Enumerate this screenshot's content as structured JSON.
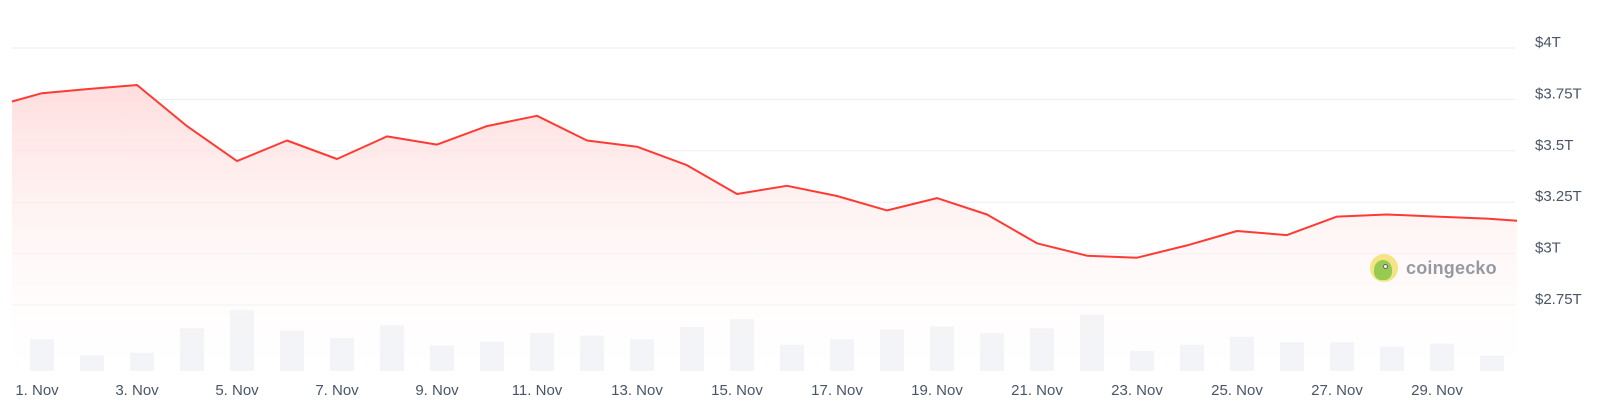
{
  "chart_data": {
    "type": "area",
    "watermark_text": "coingecko",
    "colors": {
      "line": "#ff3a33",
      "area_top": "#ffdcdc",
      "volume": "#eff1f5",
      "grid": "#eceef1",
      "label": "#4a5567"
    },
    "y_axis": {
      "position": "right",
      "min": 2.75,
      "max": 4.0,
      "ticks": [
        {
          "value": 4.0,
          "label": "$4T"
        },
        {
          "value": 3.75,
          "label": "$3.75T"
        },
        {
          "value": 3.5,
          "label": "$3.5T"
        },
        {
          "value": 3.25,
          "label": "$3.25T"
        },
        {
          "value": 3.0,
          "label": "$3T"
        },
        {
          "value": 2.75,
          "label": "$2.75T"
        }
      ]
    },
    "x_axis": {
      "ticks": [
        {
          "day": 1,
          "label": "1. Nov"
        },
        {
          "day": 3,
          "label": "3. Nov"
        },
        {
          "day": 5,
          "label": "5. Nov"
        },
        {
          "day": 7,
          "label": "7. Nov"
        },
        {
          "day": 9,
          "label": "9. Nov"
        },
        {
          "day": 11,
          "label": "11. Nov"
        },
        {
          "day": 13,
          "label": "13. Nov"
        },
        {
          "day": 15,
          "label": "15. Nov"
        },
        {
          "day": 17,
          "label": "17. Nov"
        },
        {
          "day": 19,
          "label": "19. Nov"
        },
        {
          "day": 21,
          "label": "21. Nov"
        },
        {
          "day": 23,
          "label": "23. Nov"
        },
        {
          "day": 25,
          "label": "25. Nov"
        },
        {
          "day": 27,
          "label": "27. Nov"
        },
        {
          "day": 29,
          "label": "29. Nov"
        }
      ]
    },
    "series": [
      {
        "values": [
          {
            "day": 0.5,
            "value": 3.74
          },
          {
            "day": 1.1,
            "value": 3.78
          },
          {
            "day": 2.0,
            "value": 3.8
          },
          {
            "day": 3.0,
            "value": 3.82
          },
          {
            "day": 4.0,
            "value": 3.62
          },
          {
            "day": 5.0,
            "value": 3.45
          },
          {
            "day": 6.0,
            "value": 3.55
          },
          {
            "day": 7.0,
            "value": 3.46
          },
          {
            "day": 8.0,
            "value": 3.57
          },
          {
            "day": 9.0,
            "value": 3.53
          },
          {
            "day": 10.0,
            "value": 3.62
          },
          {
            "day": 11.0,
            "value": 3.67
          },
          {
            "day": 12.0,
            "value": 3.55
          },
          {
            "day": 13.0,
            "value": 3.52
          },
          {
            "day": 14.0,
            "value": 3.43
          },
          {
            "day": 15.0,
            "value": 3.29
          },
          {
            "day": 16.0,
            "value": 3.33
          },
          {
            "day": 17.0,
            "value": 3.28
          },
          {
            "day": 18.0,
            "value": 3.21
          },
          {
            "day": 19.0,
            "value": 3.27
          },
          {
            "day": 20.0,
            "value": 3.19
          },
          {
            "day": 21.0,
            "value": 3.05
          },
          {
            "day": 22.0,
            "value": 2.99
          },
          {
            "day": 23.0,
            "value": 2.98
          },
          {
            "day": 24.0,
            "value": 3.04
          },
          {
            "day": 25.0,
            "value": 3.11
          },
          {
            "day": 26.0,
            "value": 3.09
          },
          {
            "day": 27.0,
            "value": 3.18
          },
          {
            "day": 28.0,
            "value": 3.19
          },
          {
            "day": 29.0,
            "value": 3.18
          },
          {
            "day": 30.0,
            "value": 3.17
          },
          {
            "day": 30.6,
            "value": 3.16
          }
        ]
      }
    ],
    "volume": [
      {
        "day": 1.1,
        "value": 0.52
      },
      {
        "day": 2.1,
        "value": 0.26
      },
      {
        "day": 3.1,
        "value": 0.3
      },
      {
        "day": 4.1,
        "value": 0.7
      },
      {
        "day": 5.1,
        "value": 1.0
      },
      {
        "day": 6.1,
        "value": 0.66
      },
      {
        "day": 7.1,
        "value": 0.54
      },
      {
        "day": 8.1,
        "value": 0.75
      },
      {
        "day": 9.1,
        "value": 0.42
      },
      {
        "day": 10.1,
        "value": 0.48
      },
      {
        "day": 11.1,
        "value": 0.62
      },
      {
        "day": 12.1,
        "value": 0.58
      },
      {
        "day": 13.1,
        "value": 0.52
      },
      {
        "day": 14.1,
        "value": 0.72
      },
      {
        "day": 15.1,
        "value": 0.85
      },
      {
        "day": 16.1,
        "value": 0.43
      },
      {
        "day": 17.1,
        "value": 0.52
      },
      {
        "day": 18.1,
        "value": 0.68
      },
      {
        "day": 19.1,
        "value": 0.73
      },
      {
        "day": 20.1,
        "value": 0.62
      },
      {
        "day": 21.1,
        "value": 0.7
      },
      {
        "day": 22.1,
        "value": 0.92
      },
      {
        "day": 23.1,
        "value": 0.33
      },
      {
        "day": 24.1,
        "value": 0.43
      },
      {
        "day": 25.1,
        "value": 0.56
      },
      {
        "day": 26.1,
        "value": 0.47
      },
      {
        "day": 27.1,
        "value": 0.47
      },
      {
        "day": 28.1,
        "value": 0.4
      },
      {
        "day": 29.1,
        "value": 0.45
      },
      {
        "day": 30.1,
        "value": 0.25
      }
    ]
  }
}
